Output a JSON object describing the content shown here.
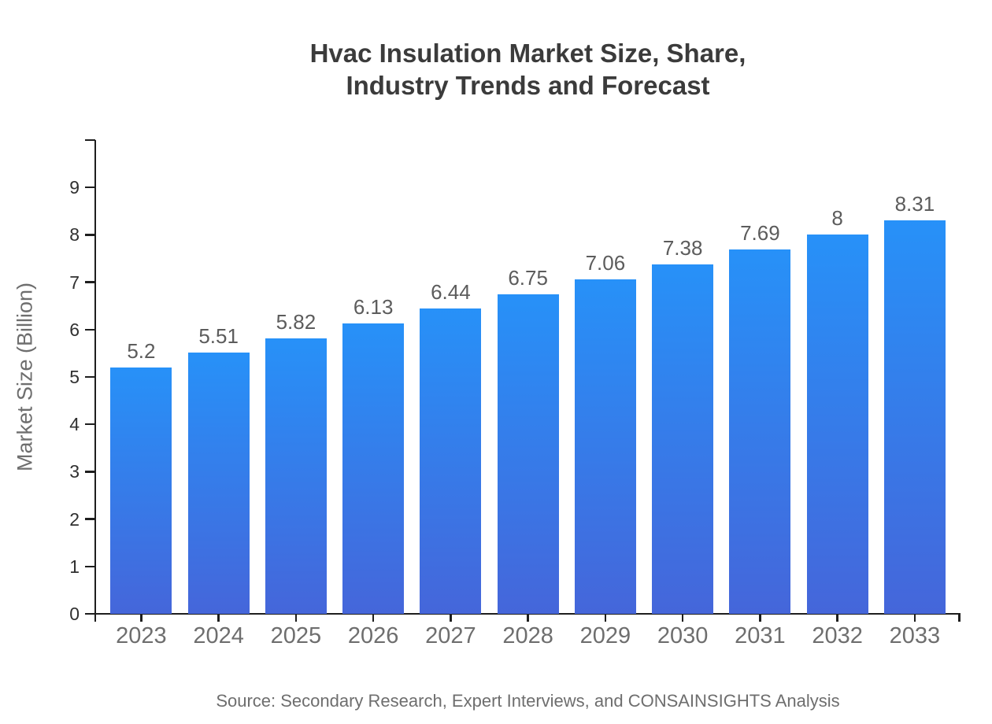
{
  "title": {
    "line1": "Hvac Insulation Market Size, Share,",
    "line2": "Industry Trends and Forecast"
  },
  "source_note": "Source: Secondary Research, Expert Interviews, and CONSAINSIGHTS Analysis",
  "chart_data": {
    "type": "bar",
    "title": "Hvac Insulation Market Size, Share, Industry Trends and Forecast",
    "xlabel": "",
    "ylabel": "Market Size (Billion)",
    "categories": [
      "2023",
      "2024",
      "2025",
      "2026",
      "2027",
      "2028",
      "2029",
      "2030",
      "2031",
      "2032",
      "2033"
    ],
    "values": [
      5.2,
      5.51,
      5.82,
      6.13,
      6.44,
      6.75,
      7.06,
      7.38,
      7.69,
      8,
      8.31
    ],
    "value_labels": [
      "5.2",
      "5.51",
      "5.82",
      "6.13",
      "6.44",
      "6.75",
      "7.06",
      "7.38",
      "7.69",
      "8",
      "8.31"
    ],
    "ylim": [
      0,
      10
    ],
    "yticks": [
      0,
      1,
      2,
      3,
      4,
      5,
      6,
      7,
      8,
      9
    ],
    "grid": false,
    "legend": null,
    "colors": {
      "bar_gradient_top": "#2791F8",
      "bar_gradient_bottom": "#4566DA",
      "axis": "#1e1e1e",
      "y_tick_label": "#303030",
      "x_tick_label": "#6e6e6e",
      "value_label": "#5c5c5c",
      "title": "#3b3b3b",
      "muted_text": "#6e6e6e"
    }
  }
}
